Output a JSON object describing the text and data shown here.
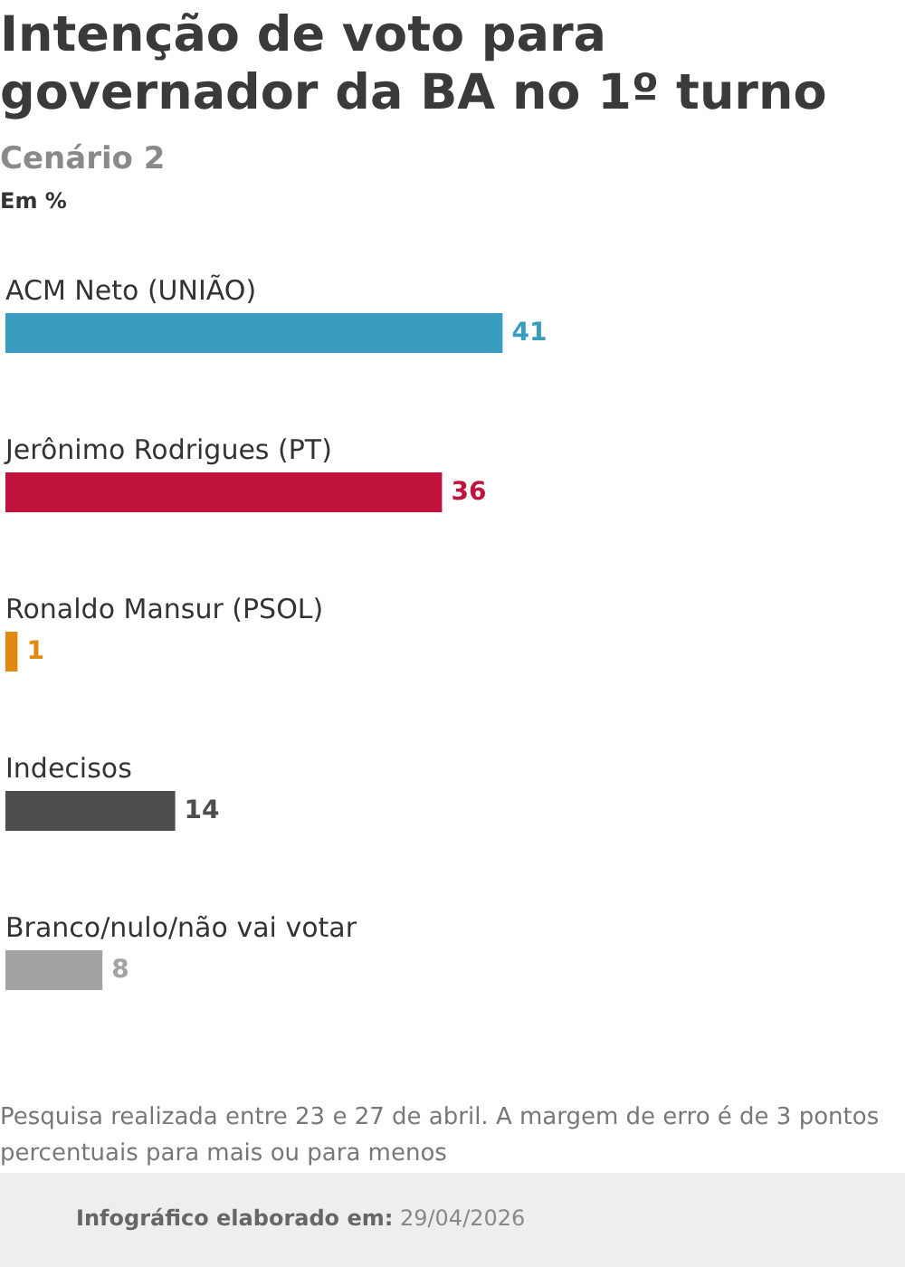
{
  "chart_data": {
    "type": "bar",
    "orientation": "horizontal",
    "title": "Intenção de voto para governador da BA no 1º turno",
    "subtitle": "Cenário 2",
    "categories": [
      "ACM Neto (UNIÃO)",
      "Jerônimo Rodrigues (PT)",
      "Ronaldo Mansur (PSOL)",
      "Indecisos",
      "Branco/nulo/não vai votar"
    ],
    "values": [
      41,
      36,
      1,
      14,
      8
    ],
    "colors": [
      "#3a9dc0",
      "#c0123c",
      "#e08a12",
      "#4e4e4e",
      "#a3a3a3"
    ],
    "data_labels": true,
    "tick_labels": "y",
    "annotations": [
      "Em %",
      "Pesquisa realizada entre 23 e 27 de abril. A margem de erro é de 3 pontos percentuais para mais ou para menos",
      "Infográfico elaborado em: 29/04/2026"
    ]
  }
}
